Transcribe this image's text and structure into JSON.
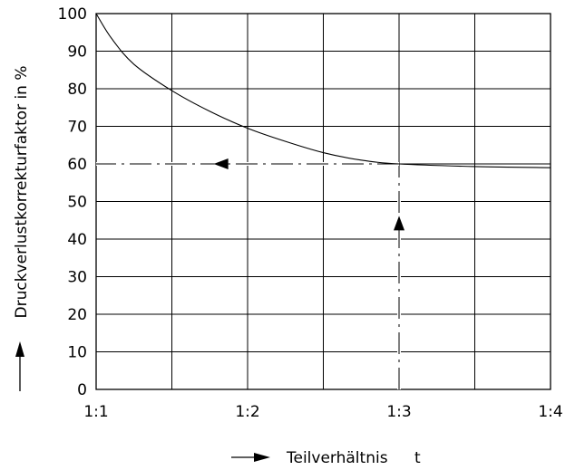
{
  "chart_data": {
    "type": "line",
    "xlabel": "Teilverhältnis",
    "xlabel_symbol": "t",
    "ylabel": "Druckverlustkorrekturfaktor in %",
    "x_ticks": [
      {
        "value": 1,
        "label": "1:1"
      },
      {
        "value": 2,
        "label": "1:2"
      },
      {
        "value": 3,
        "label": "1:3"
      },
      {
        "value": 4,
        "label": "1:4"
      }
    ],
    "y_ticks": [
      0,
      10,
      20,
      30,
      40,
      50,
      60,
      70,
      80,
      90,
      100
    ],
    "xlim": [
      1,
      4
    ],
    "ylim": [
      0,
      100
    ],
    "grid": true,
    "x_grid_step": 0.5,
    "series": [
      {
        "x": [
          1.0,
          1.1,
          1.25,
          1.5,
          1.75,
          2.0,
          2.25,
          2.5,
          2.75,
          3.0,
          3.5,
          4.0
        ],
        "y": [
          100,
          93.5,
          86.5,
          79.5,
          74,
          69.5,
          66,
          63,
          61,
          60,
          59.3,
          59
        ]
      }
    ],
    "reading_example": {
      "x": 3,
      "y": 60,
      "description_path": "vertical dash-dot line from x axis up to curve at x=3, then horizontal dash-dot line left to the y axis at 60",
      "arrows": [
        {
          "x": 3,
          "y": 44,
          "direction": "up"
        },
        {
          "x": 1.83,
          "y": 60,
          "direction": "left"
        }
      ]
    }
  }
}
